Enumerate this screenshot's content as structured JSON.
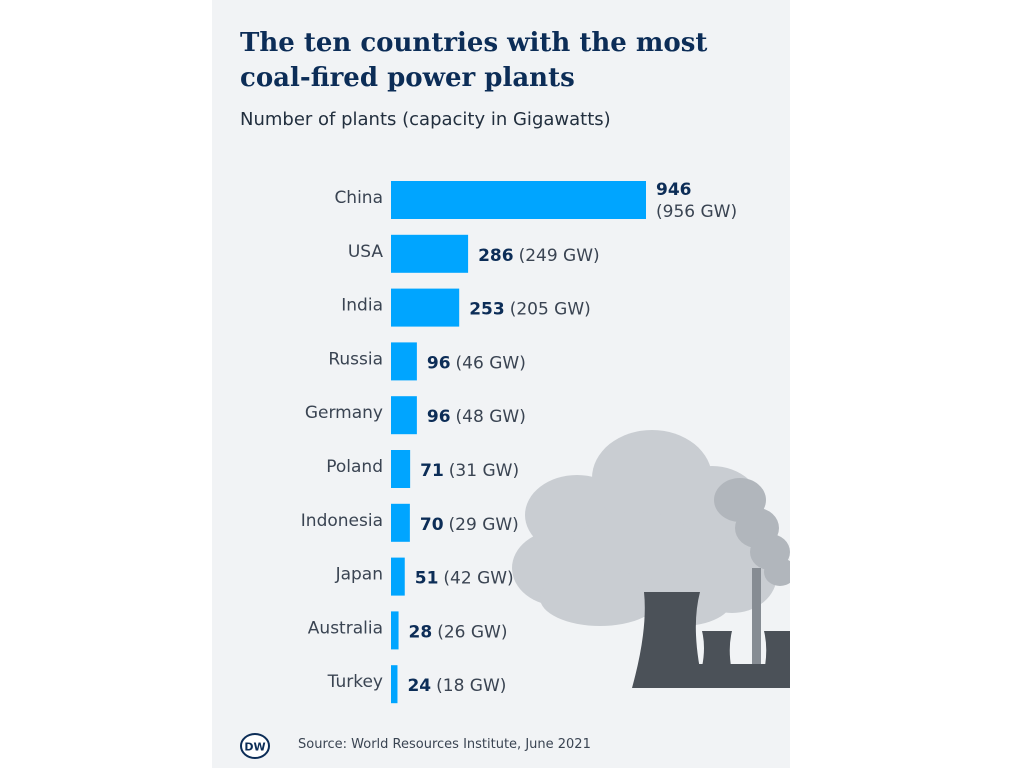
{
  "chart_data": {
    "type": "bar",
    "orientation": "horizontal",
    "title": "The ten countries with the most coal-fired power plants",
    "subtitle": "Number of plants (capacity in Gigawatts)",
    "categories": [
      "China",
      "USA",
      "India",
      "Russia",
      "Germany",
      "Poland",
      "Indonesia",
      "Japan",
      "Australia",
      "Turkey"
    ],
    "values": [
      946,
      286,
      253,
      96,
      96,
      71,
      70,
      51,
      28,
      24
    ],
    "capacity_labels": [
      "(956 GW)",
      "(249 GW)",
      "(205 GW)",
      "(46 GW)",
      "(48 GW)",
      "(31 GW)",
      "(29 GW)",
      "(42 GW)",
      "(26 GW)",
      "(18 GW)"
    ],
    "bar_color": "#00a5ff",
    "value_color": "#0c2d57",
    "grid": false,
    "legend": false
  },
  "footer": {
    "logo_text": "DW",
    "source": "Source: World Resources Institute, June 2021"
  },
  "colors": {
    "background": "#f1f3f5",
    "smoke": "#c7cbd0",
    "tower": "#4b5158"
  }
}
